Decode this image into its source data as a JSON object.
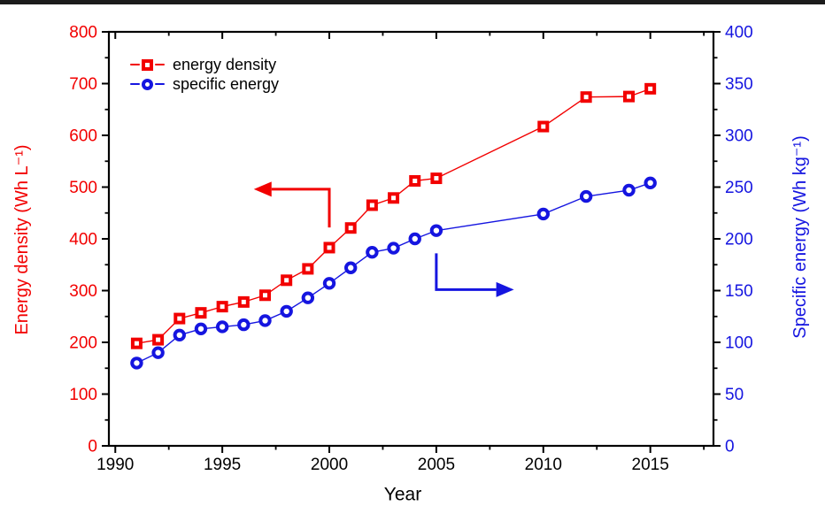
{
  "figure": {
    "top_rule_color": "#1b1b1b",
    "background": "#ffffff"
  },
  "colors": {
    "energy_density": "#f20000",
    "specific_energy": "#1515e0",
    "axis": "#000000"
  },
  "chart_data": {
    "type": "line",
    "title": "",
    "xlabel": "Year",
    "ylabel_left": "Energy density (Wh L⁻¹)",
    "ylabel_right": "Specific energy (Wh kg⁻¹)",
    "x_range": [
      1989.7,
      2017.95
    ],
    "ylim_left": [
      0,
      800
    ],
    "ylim_right": [
      0,
      400
    ],
    "grid": false,
    "legend_position": "top-left-inside",
    "x_major_ticks": [
      1990,
      1995,
      2000,
      2005,
      2010,
      2015
    ],
    "x_major_labels": [
      "1990",
      "1995",
      "2000",
      "2005",
      "2010",
      "2015"
    ],
    "x_minor_ticks": [
      1992.5,
      1997.5,
      2002.5,
      2007.5,
      2012.5,
      2017.5
    ],
    "y_left_major_ticks": [
      0,
      100,
      200,
      300,
      400,
      500,
      600,
      700,
      800
    ],
    "y_left_major_labels": [
      "0",
      "100",
      "200",
      "300",
      "400",
      "500",
      "600",
      "700",
      "800"
    ],
    "y_left_minor_ticks": [
      50,
      150,
      250,
      350,
      450,
      550,
      650,
      750
    ],
    "y_right_major_ticks": [
      0,
      50,
      100,
      150,
      200,
      250,
      300,
      350,
      400
    ],
    "y_right_major_labels": [
      "0",
      "50",
      "100",
      "150",
      "200",
      "250",
      "300",
      "350",
      "400"
    ],
    "y_right_minor_ticks": [
      25,
      75,
      125,
      175,
      225,
      275,
      325,
      375
    ],
    "x": [
      1991,
      1992,
      1993,
      1994,
      1995,
      1996,
      1997,
      1998,
      1999,
      2000,
      2001,
      2002,
      2003,
      2004,
      2005,
      2010,
      2012,
      2014,
      2015
    ],
    "series": [
      {
        "name": "energy density",
        "axis": "left",
        "unit": "Wh L⁻¹",
        "marker": "square",
        "color": "#f20000",
        "values": [
          198,
          205,
          246,
          257,
          269,
          278,
          291,
          320,
          342,
          383,
          421,
          465,
          479,
          512,
          517,
          617,
          674,
          675,
          690
        ]
      },
      {
        "name": "specific energy",
        "axis": "right",
        "unit": "Wh kg⁻¹",
        "marker": "circle",
        "color": "#1515e0",
        "values": [
          80,
          90,
          107,
          113,
          115,
          117,
          121,
          130,
          143,
          157,
          172,
          187,
          191,
          200,
          208,
          224,
          241,
          247,
          254
        ]
      }
    ],
    "annotations": [
      {
        "type": "elbow-arrow",
        "points_to": "left-axis",
        "color": "#f20000",
        "axis": "left",
        "path": [
          [
            2000.0,
            422
          ],
          [
            2000.0,
            496
          ],
          [
            1997.3,
            496
          ]
        ]
      },
      {
        "type": "elbow-arrow",
        "points_to": "right-axis",
        "color": "#1515e0",
        "axis": "right",
        "path": [
          [
            2005.0,
            186
          ],
          [
            2005.0,
            151
          ],
          [
            2007.8,
            151
          ]
        ]
      }
    ]
  },
  "legend": {
    "items": [
      {
        "label": "energy density"
      },
      {
        "label": "specific energy"
      }
    ]
  }
}
